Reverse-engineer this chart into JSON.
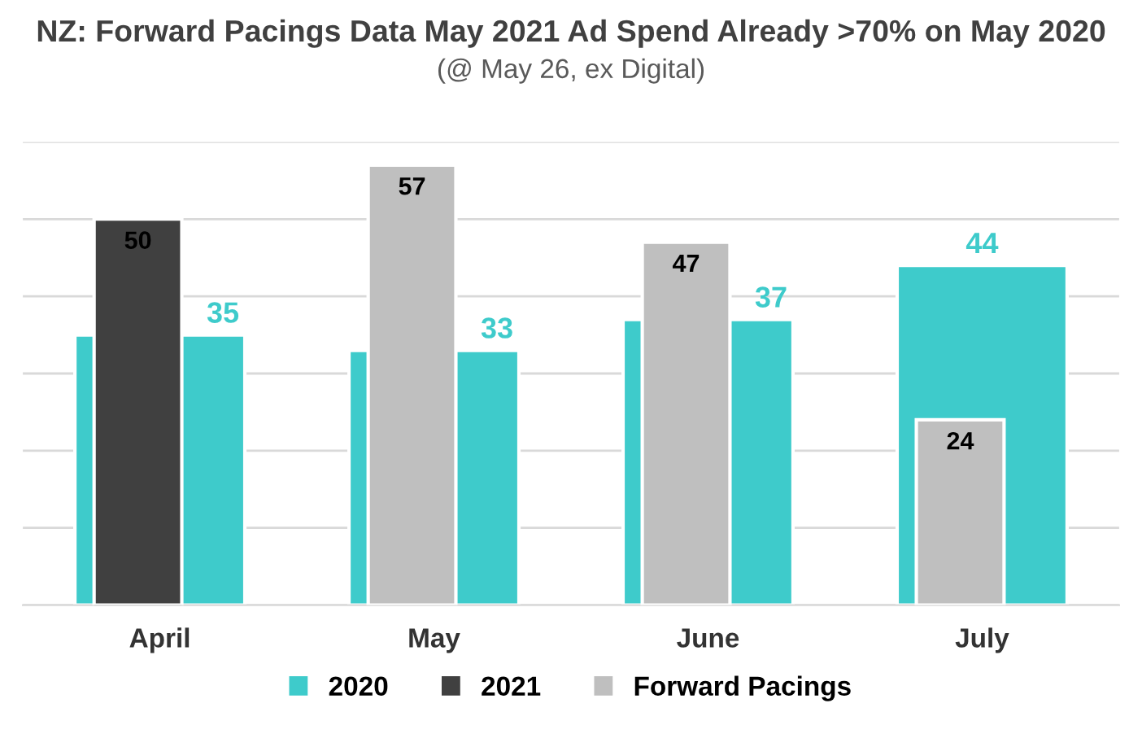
{
  "chart_data": {
    "type": "bar",
    "title": "NZ: Forward Pacings Data May 2021 Ad Spend Already >70% on May 2020",
    "subtitle": "(@ May 26, ex Digital)",
    "categories": [
      "April",
      "May",
      "June",
      "July"
    ],
    "series": [
      {
        "name": "2020",
        "color": "#3ecbcb",
        "values": [
          35,
          33,
          37,
          44
        ]
      },
      {
        "name": "2021",
        "color": "#404040",
        "values": [
          50,
          null,
          null,
          null
        ]
      },
      {
        "name": "Forward Pacings",
        "color": "#bfbfbf",
        "values": [
          null,
          57,
          47,
          24
        ]
      }
    ],
    "ylim": [
      0,
      60
    ],
    "yticks": [
      {
        "value": 0,
        "label": null
      },
      {
        "value": 10,
        "label": null
      },
      {
        "value": 20,
        "label": null
      },
      {
        "value": 30,
        "label": null
      },
      {
        "value": 40,
        "label": null
      },
      {
        "value": 50,
        "label": null
      },
      {
        "value": 60,
        "label": null
      }
    ],
    "grid": "y",
    "tick_labels": "x",
    "legend": "bottom",
    "data_labels": true
  }
}
